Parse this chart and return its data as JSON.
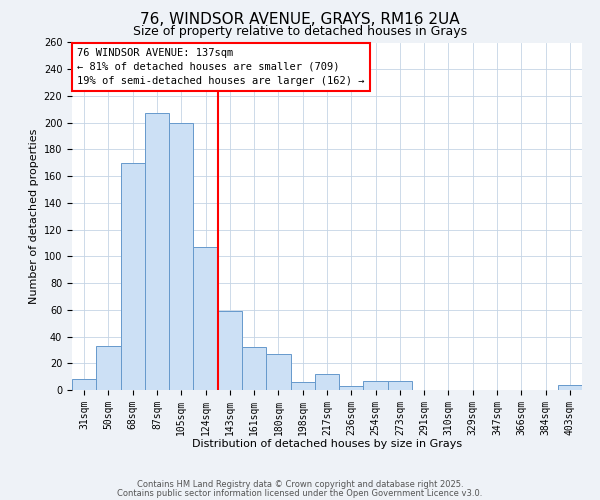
{
  "title": "76, WINDSOR AVENUE, GRAYS, RM16 2UA",
  "subtitle": "Size of property relative to detached houses in Grays",
  "xlabel": "Distribution of detached houses by size in Grays",
  "ylabel": "Number of detached properties",
  "categories": [
    "31sqm",
    "50sqm",
    "68sqm",
    "87sqm",
    "105sqm",
    "124sqm",
    "143sqm",
    "161sqm",
    "180sqm",
    "198sqm",
    "217sqm",
    "236sqm",
    "254sqm",
    "273sqm",
    "291sqm",
    "310sqm",
    "329sqm",
    "347sqm",
    "366sqm",
    "384sqm",
    "403sqm"
  ],
  "values": [
    8,
    33,
    170,
    207,
    200,
    107,
    59,
    32,
    27,
    6,
    12,
    3,
    7,
    7,
    0,
    0,
    0,
    0,
    0,
    0,
    4
  ],
  "bar_color": "#cce0f5",
  "bar_edge_color": "#6699cc",
  "vline_x_index": 6,
  "ylim": [
    0,
    260
  ],
  "yticks": [
    0,
    20,
    40,
    60,
    80,
    100,
    120,
    140,
    160,
    180,
    200,
    220,
    240,
    260
  ],
  "annotation_title": "76 WINDSOR AVENUE: 137sqm",
  "annotation_line1": "← 81% of detached houses are smaller (709)",
  "annotation_line2": "19% of semi-detached houses are larger (162) →",
  "footer1": "Contains HM Land Registry data © Crown copyright and database right 2025.",
  "footer2": "Contains public sector information licensed under the Open Government Licence v3.0.",
  "background_color": "#eef2f7",
  "plot_bg_color": "#ffffff",
  "grid_color": "#c5d5e5",
  "title_fontsize": 11,
  "subtitle_fontsize": 9,
  "xlabel_fontsize": 8,
  "ylabel_fontsize": 8,
  "tick_fontsize": 7,
  "annot_fontsize": 7.5,
  "footer_fontsize": 6
}
